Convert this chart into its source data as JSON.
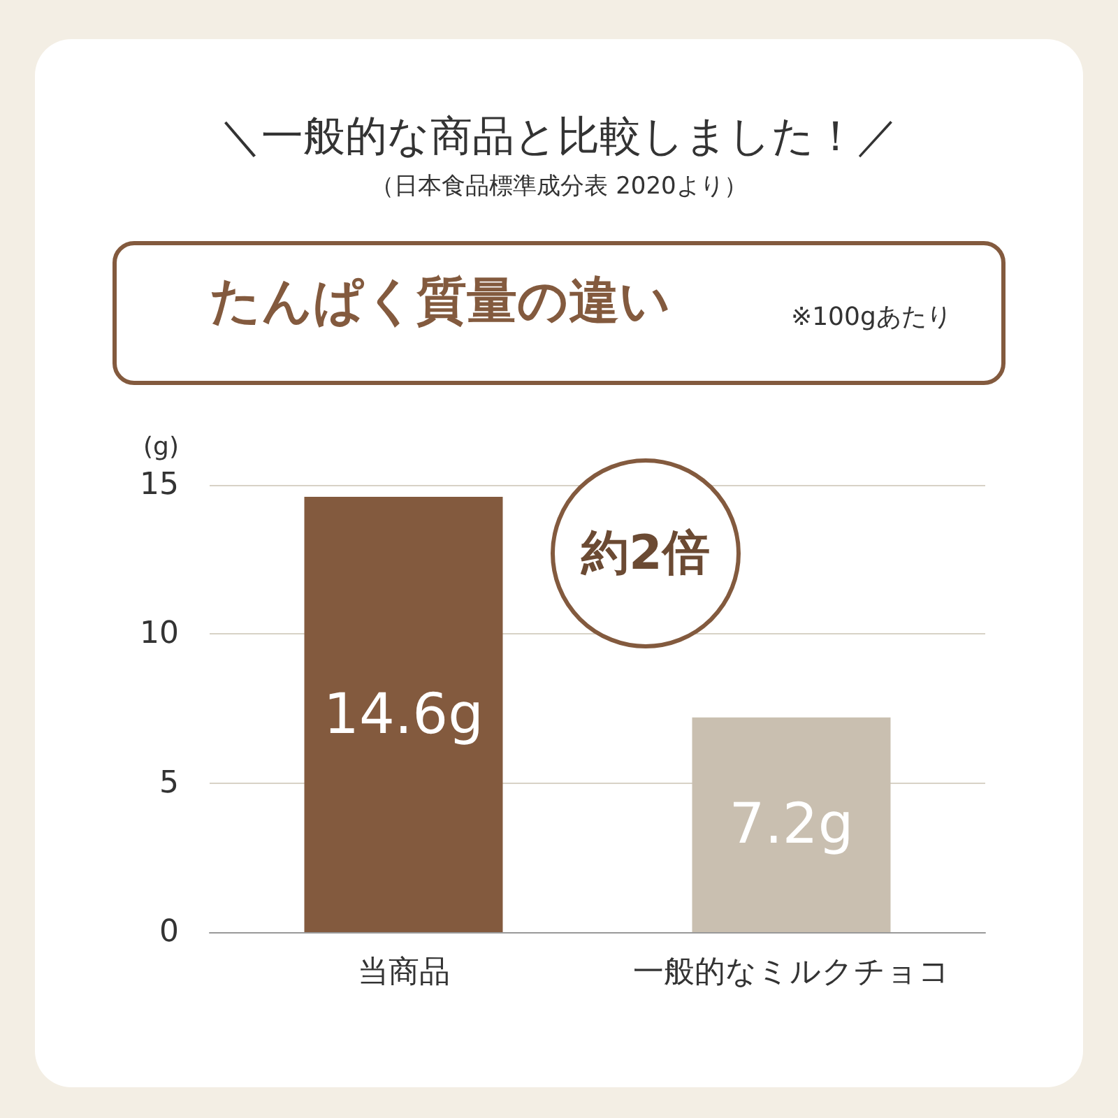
{
  "chart_data": {
    "type": "bar",
    "title": "＼一般的な商品と比較しました！／",
    "subtitle": "（日本食品標準成分表 2020より）",
    "ylabel": "(g)",
    "annotations": [
      "たんぱく質量の違い",
      "※100gあたり",
      "約2倍"
    ],
    "categories": [
      "当商品",
      "一般的なミルクチョコ"
    ],
    "values": [
      14.6,
      7.2
    ],
    "value_labels": [
      "14.6g",
      "7.2g"
    ],
    "colors": [
      "#835a3e",
      "#c9bfb0"
    ],
    "ylim": [
      0,
      15
    ],
    "yticks": [
      0,
      5,
      10,
      15
    ],
    "grid": "y"
  }
}
